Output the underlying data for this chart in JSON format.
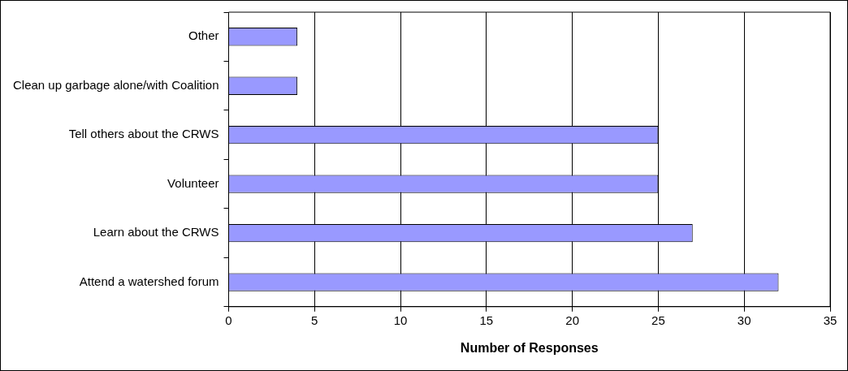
{
  "chart_data": {
    "type": "bar",
    "orientation": "horizontal",
    "categories": [
      "Other",
      "Clean up garbage alone/with Coalition",
      "Tell others about the CRWS",
      "Volunteer",
      "Learn about the CRWS",
      "Attend a watershed forum"
    ],
    "values": [
      4,
      4,
      25,
      25,
      27,
      32
    ],
    "color": "#9999ff",
    "xlabel": "Number of Responses",
    "xlim": [
      0,
      35
    ],
    "xticks": [
      0,
      5,
      10,
      15,
      20,
      25,
      30,
      35
    ],
    "grid": "x"
  }
}
